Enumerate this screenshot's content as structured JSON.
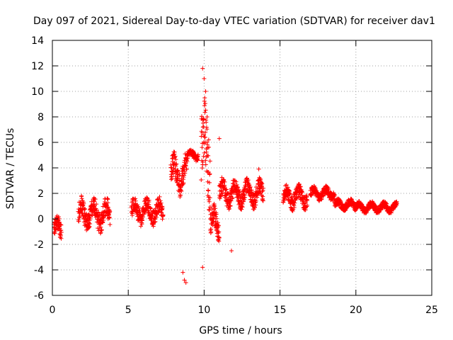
{
  "chart_data": {
    "type": "scatter",
    "title": "Day 097 of 2021, Sidereal Day-to-day VTEC variation (SDTVAR) for receiver dav1",
    "xlabel": "GPS time / hours",
    "ylabel": "SDTVAR / TECUs",
    "xlim": [
      0,
      25
    ],
    "ylim": [
      -6,
      14
    ],
    "x_ticks": [
      0,
      5,
      10,
      15,
      20,
      25
    ],
    "y_ticks": [
      -6,
      -4,
      -2,
      0,
      2,
      4,
      6,
      8,
      10,
      12,
      14
    ],
    "grid": true,
    "marker": "+",
    "marker_color": "#ff0000",
    "series": [
      {
        "name": "SDTVAR",
        "segments": [
          {
            "x_start": 0.1,
            "x_end": 0.6,
            "y_center": -0.8,
            "spread": 1.3
          },
          {
            "x_start": 1.7,
            "x_end": 3.8,
            "y_center": 0.3,
            "spread": 1.5
          },
          {
            "x_start": 5.2,
            "x_end": 7.3,
            "y_center": 0.6,
            "spread": 1.2
          },
          {
            "x_start": 7.8,
            "x_end": 8.9,
            "y_center": 3.5,
            "spread": 1.8
          },
          {
            "x_start": 8.9,
            "x_end": 9.6,
            "y_center": 5.0,
            "spread": 0.5
          },
          {
            "x_start": 9.8,
            "x_end": 10.4,
            "y_center": 5.0,
            "spread": 5.0
          },
          {
            "x_start": 10.4,
            "x_end": 11.0,
            "y_center": -0.5,
            "spread": 1.8
          },
          {
            "x_start": 11.0,
            "x_end": 13.9,
            "y_center": 2.0,
            "spread": 1.3
          },
          {
            "x_start": 15.2,
            "x_end": 16.8,
            "y_center": 1.7,
            "spread": 1.1
          },
          {
            "x_start": 17.0,
            "x_end": 18.6,
            "y_center": 2.0,
            "spread": 0.6
          },
          {
            "x_start": 18.6,
            "x_end": 20.0,
            "y_center": 1.1,
            "spread": 0.5
          },
          {
            "x_start": 20.0,
            "x_end": 22.7,
            "y_center": 0.9,
            "spread": 0.5
          }
        ],
        "outliers": [
          {
            "x": 8.6,
            "y": -4.2
          },
          {
            "x": 8.7,
            "y": -4.8
          },
          {
            "x": 8.8,
            "y": -5.0
          },
          {
            "x": 9.9,
            "y": 11.8
          },
          {
            "x": 10.0,
            "y": 11.0
          },
          {
            "x": 10.1,
            "y": 10.0
          },
          {
            "x": 10.2,
            "y": 8.0
          },
          {
            "x": 10.3,
            "y": 6.2
          },
          {
            "x": 9.9,
            "y": -3.8
          },
          {
            "x": 11.0,
            "y": 6.3
          },
          {
            "x": 11.8,
            "y": -2.5
          },
          {
            "x": 13.6,
            "y": 3.9
          }
        ]
      }
    ]
  }
}
